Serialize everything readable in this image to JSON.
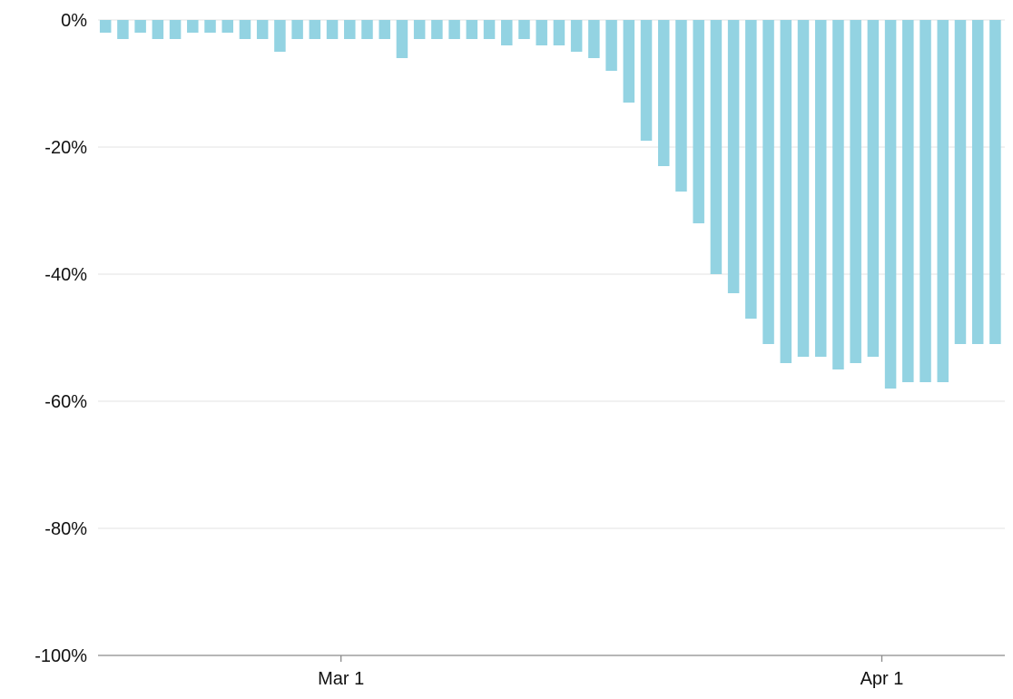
{
  "chart_data": {
    "type": "bar",
    "series": [
      {
        "color": "#93d3e2",
        "values": [
          -2,
          -3,
          -2,
          -3,
          -3,
          -2,
          -2,
          -2,
          -3,
          -3,
          -5,
          -3,
          -3,
          -3,
          -3,
          -3,
          -3,
          -6,
          -3,
          -3,
          -3,
          -3,
          -3,
          -4,
          -3,
          -4,
          -4,
          -5,
          -6,
          -8,
          -13,
          -19,
          -23,
          -27,
          -32,
          -40,
          -43,
          -47,
          -51,
          -54,
          -53,
          -53,
          -55,
          -54,
          -53,
          -58,
          -57,
          -57,
          -57,
          -51,
          -51,
          -51
        ]
      }
    ],
    "ylim": [
      -100,
      0
    ],
    "y_ticks": [
      {
        "value": 0,
        "label": "0%"
      },
      {
        "value": -20,
        "label": "-20%"
      },
      {
        "value": -40,
        "label": "-40%"
      },
      {
        "value": -60,
        "label": "-60%"
      },
      {
        "value": -80,
        "label": "-80%"
      },
      {
        "value": -100,
        "label": "-100%"
      }
    ],
    "x_ticks": [
      {
        "index": 13.5,
        "label": "Mar 1"
      },
      {
        "index": 44.5,
        "label": "Apr 1"
      }
    ],
    "grid": true,
    "title": "",
    "xlabel": "",
    "ylabel": ""
  }
}
